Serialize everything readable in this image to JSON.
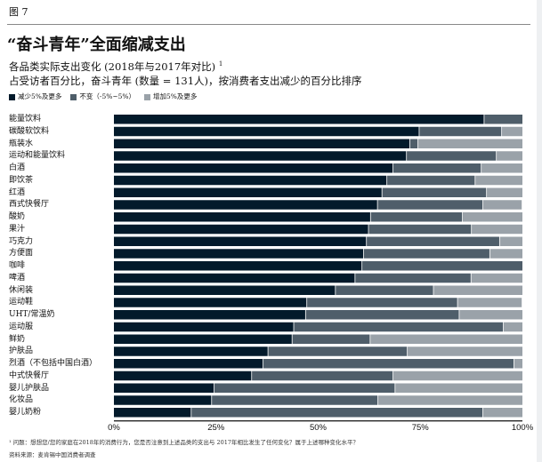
{
  "figure_label": "图 7",
  "chart_data": {
    "type": "bar",
    "orientation": "horizontal",
    "stacked": true,
    "title": "“奋斗青年”全面缩减支出",
    "subtitle": "各品类实际支出变化 (2018年与2017年对比)",
    "subtitle_footnote_mark": "1",
    "subtitle2": "占受访者百分比，奋斗青年 (数量 = 131人)，按消费者支出减少的百分比排序",
    "xlim": [
      0,
      100
    ],
    "xticks": [
      "0%",
      "25%",
      "50%",
      "75%",
      "100%"
    ],
    "grid": false,
    "legend_position": "top-left",
    "categories": [
      "能量饮料",
      "碳酸软饮料",
      "瓶装水",
      "运动和能量饮料",
      "白酒",
      "即饮茶",
      "红酒",
      "西式快餐厅",
      "酸奶",
      "果汁",
      "巧克力",
      "方便面",
      "咖啡",
      "啤酒",
      "休闲装",
      "运动鞋",
      "UHT/常温奶",
      "运动服",
      "鲜奶",
      "护肤品",
      "烈酒（不包括中国白酒）",
      "中式快餐厅",
      "婴儿护肤品",
      "化妆品",
      "婴儿奶粉"
    ],
    "series": [
      {
        "name": "减少5%及更多",
        "color": "#031a2b",
        "values": [
          90.7,
          74.8,
          72.5,
          71.7,
          68.4,
          66.9,
          65.7,
          64.6,
          62.9,
          62.4,
          61.9,
          61.2,
          60.8,
          59.1,
          54.3,
          47.3,
          47.0,
          44.1,
          43.7,
          37.8,
          36.6,
          33.8,
          24.6,
          24.0,
          19.0
        ]
      },
      {
        "name": "不变（-5%~5%）",
        "color": "#4f5e6a",
        "values": [
          9.3,
          20.2,
          2.0,
          22.0,
          21.6,
          21.6,
          25.6,
          25.8,
          22.5,
          25.2,
          32.6,
          30.9,
          39.2,
          28.4,
          24.0,
          36.9,
          37.6,
          51.3,
          19.1,
          34.1,
          61.4,
          34.6,
          44.3,
          40.7,
          71.4
        ]
      },
      {
        "name": "增加5%及更多",
        "color": "#9aa2a9",
        "values": [
          0,
          5.0,
          25.5,
          6.3,
          10.0,
          11.5,
          8.7,
          9.6,
          14.6,
          12.4,
          5.5,
          7.9,
          0,
          12.5,
          21.7,
          15.8,
          15.4,
          4.6,
          37.2,
          28.1,
          2.0,
          31.6,
          31.1,
          35.3,
          9.6
        ]
      }
    ]
  },
  "footnote": "¹ 问题：想想您/您的家庭在2018年的消费行为，您是否注意到上述品类的支出与 2017年相比发生了任何变化？属于上述哪种变化水平？",
  "source": "资料来源：麦肯锡中国消费者调查"
}
